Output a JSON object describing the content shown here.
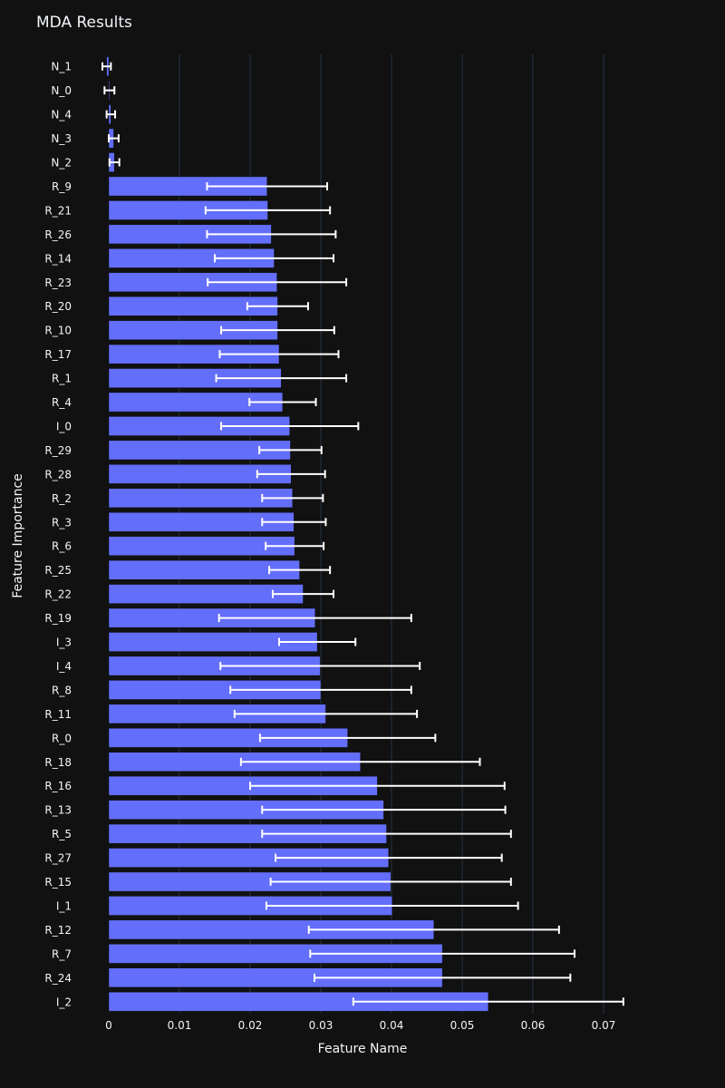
{
  "chart_data": {
    "type": "bar",
    "orientation": "horizontal",
    "title": "MDA Results",
    "xlabel": "Feature Name",
    "ylabel": "Feature Importance",
    "xlim": [
      0,
      0.0735
    ],
    "xticks": [
      0,
      0.01,
      0.02,
      0.03,
      0.04,
      0.05,
      0.06,
      0.07
    ],
    "xtick_labels": [
      "0",
      "0.01",
      "0.02",
      "0.03",
      "0.04",
      "0.05",
      "0.06",
      "0.07"
    ],
    "grid": true,
    "bar_color": "#636efa",
    "error_color": "#ffffff",
    "background_color": "#111111",
    "grid_color": "#283442",
    "text_color": "#f2f5fa",
    "categories": [
      "N_1",
      "N_0",
      "N_4",
      "N_3",
      "N_2",
      "R_9",
      "R_21",
      "R_26",
      "R_14",
      "R_23",
      "R_20",
      "R_10",
      "R_17",
      "R_1",
      "R_4",
      "I_0",
      "R_29",
      "R_28",
      "R_2",
      "R_3",
      "R_6",
      "R_25",
      "R_22",
      "R_19",
      "I_3",
      "I_4",
      "R_8",
      "R_11",
      "R_0",
      "R_18",
      "R_16",
      "R_13",
      "R_5",
      "R_27",
      "R_15",
      "I_1",
      "R_12",
      "R_7",
      "R_24",
      "I_2"
    ],
    "values": [
      -0.0003,
      0.0001,
      0.0003,
      0.0007,
      0.0008,
      0.0224,
      0.0225,
      0.023,
      0.0234,
      0.0238,
      0.0239,
      0.0239,
      0.0241,
      0.0244,
      0.0246,
      0.0256,
      0.0257,
      0.0258,
      0.026,
      0.0262,
      0.0263,
      0.027,
      0.0275,
      0.0292,
      0.0295,
      0.0299,
      0.03,
      0.0307,
      0.0338,
      0.0356,
      0.038,
      0.0389,
      0.0393,
      0.0396,
      0.0399,
      0.0401,
      0.046,
      0.0472,
      0.0472,
      0.0537
    ],
    "errors": [
      0.0006,
      0.0007,
      0.0006,
      0.0007,
      0.0007,
      0.0085,
      0.0088,
      0.0091,
      0.0084,
      0.0098,
      0.0043,
      0.008,
      0.0084,
      0.0092,
      0.0047,
      0.0097,
      0.0044,
      0.0048,
      0.0043,
      0.0045,
      0.0041,
      0.0043,
      0.0043,
      0.0136,
      0.0054,
      0.0141,
      0.0128,
      0.0129,
      0.0124,
      0.0169,
      0.018,
      0.0172,
      0.0176,
      0.016,
      0.017,
      0.0178,
      0.0177,
      0.0187,
      0.0181,
      0.0191
    ]
  }
}
